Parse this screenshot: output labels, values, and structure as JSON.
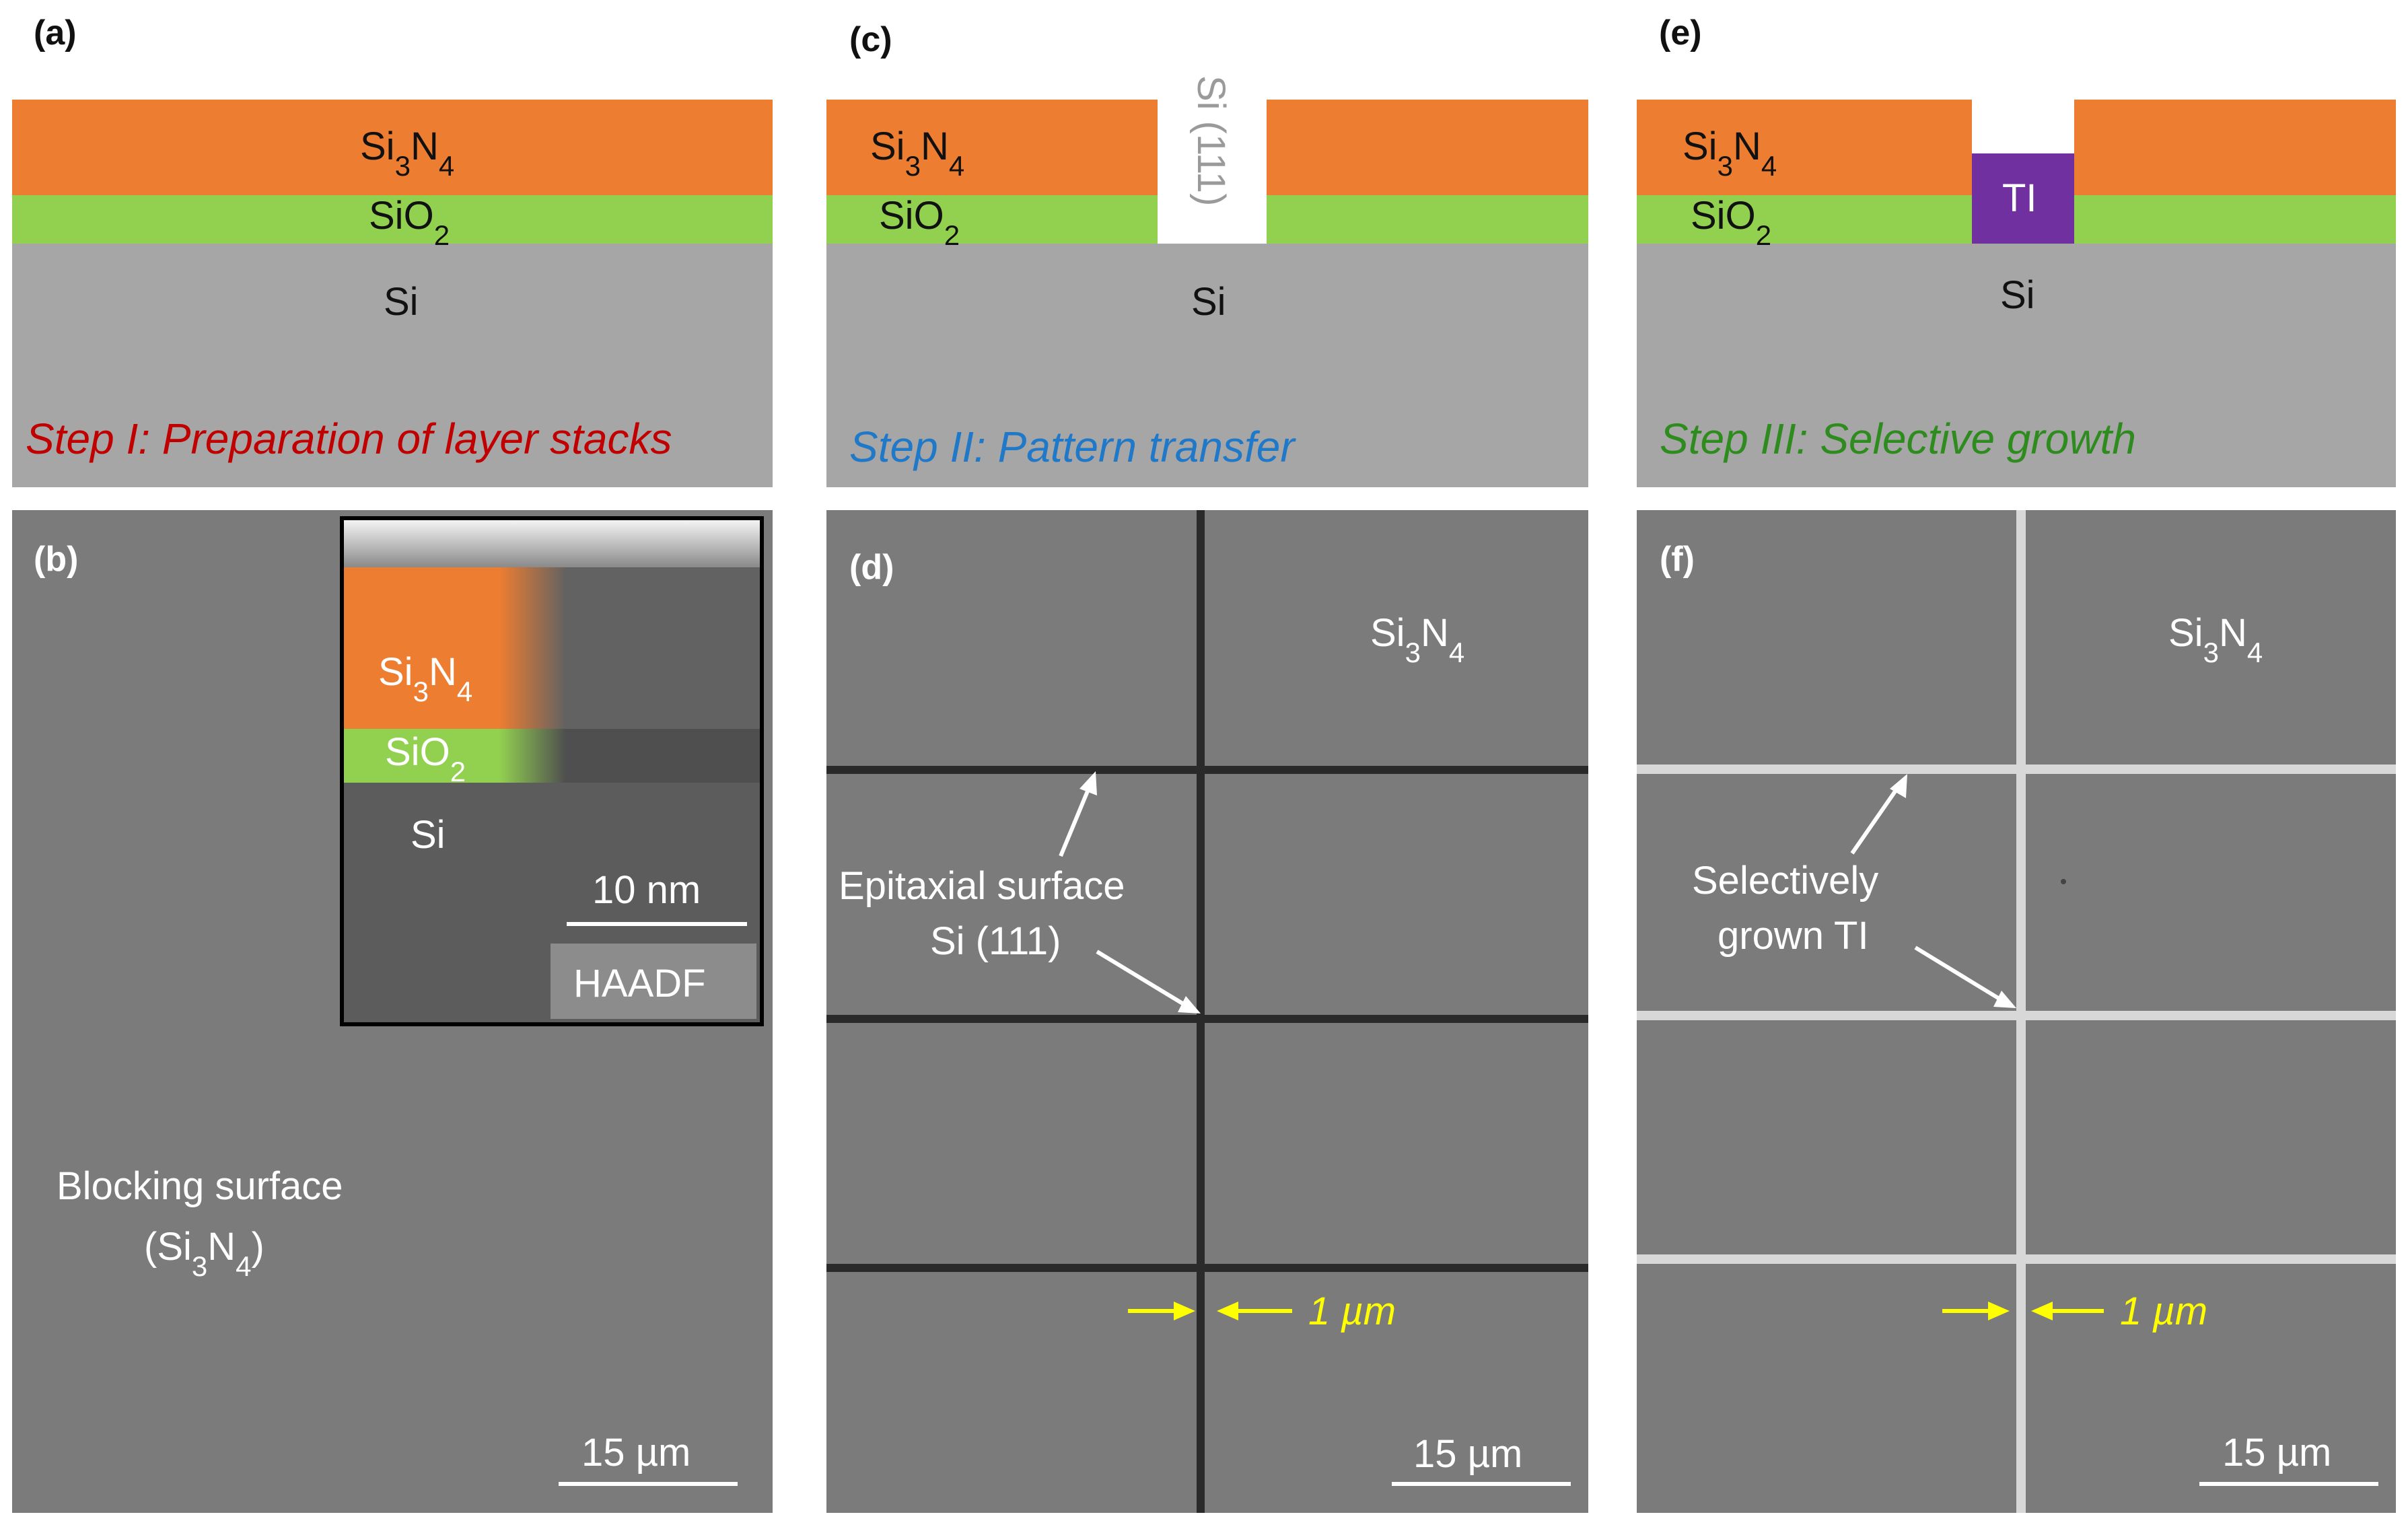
{
  "colors": {
    "si3n4": "#ed7d31",
    "sio2": "#92d050",
    "si": "#a6a6a6",
    "ti": "#7030a0",
    "sem_bg": "#7b7b7b",
    "step1": "#c00000",
    "step2": "#1f78c8",
    "step3": "#2e8b1e",
    "arrow_yellow": "#ffff00"
  },
  "panel_labels": {
    "a": "(a)",
    "b": "(b)",
    "c": "(c)",
    "d": "(d)",
    "e": "(e)",
    "f": "(f)"
  },
  "layers": {
    "si3n4_base": "Si",
    "si3n4_sub1": "3",
    "si3n4_mid": "N",
    "si3n4_sub2": "4",
    "sio2_base": "SiO",
    "sio2_sub": "2",
    "si": "Si",
    "si111_vertical": "Si (111)",
    "ti": "TI"
  },
  "steps": {
    "step1": "Step I: Preparation of layer stacks",
    "step2": "Step II: Pattern transfer",
    "step3": "Step III: Selective growth"
  },
  "inset": {
    "scale": "10 nm",
    "mode": "HAADF"
  },
  "panel_b": {
    "blocking_line1": "Blocking surface",
    "blocking_open": "(Si",
    "blocking_close": ")",
    "scale": "15 µm"
  },
  "panel_d": {
    "epi_line1": "Epitaxial surface",
    "epi_line2": "Si (111)",
    "gap": "1 µm",
    "scale": "15 µm"
  },
  "panel_f": {
    "grown_line1": "Selectively",
    "grown_line2": "grown TI",
    "gap": "1 µm",
    "scale": "15 µm"
  }
}
